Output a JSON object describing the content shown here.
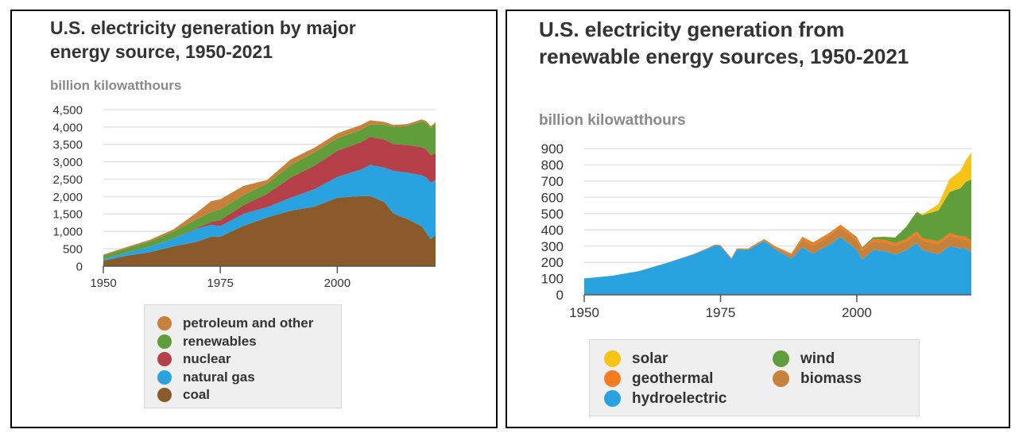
{
  "chart_data": [
    {
      "type": "area",
      "stacked": true,
      "title": "U.S. electricity generation by major energy source, 1950-2021",
      "ylabel": "billion kilowatthours",
      "ylim": [
        0,
        4500
      ],
      "xlim": [
        1950,
        2021
      ],
      "grid": true,
      "legend_position": "bottom",
      "x": [
        1950,
        1955,
        1960,
        1965,
        1970,
        1973,
        1975,
        1980,
        1985,
        1990,
        1995,
        2000,
        2005,
        2007,
        2010,
        2012,
        2015,
        2018,
        2019,
        2020,
        2021
      ],
      "series": [
        {
          "name": "coal",
          "color": "#8b5a2b",
          "values": [
            155,
            301,
            403,
            571,
            704,
            848,
            853,
            1162,
            1402,
            1594,
            1709,
            1966,
            2013,
            2016,
            1847,
            1514,
            1352,
            1146,
            965,
            774,
            898
          ]
        },
        {
          "name": "natural gas",
          "color": "#29a3e0",
          "values": [
            45,
            95,
            158,
            222,
            373,
            341,
            300,
            346,
            292,
            373,
            496,
            601,
            761,
            897,
            988,
            1226,
            1335,
            1469,
            1586,
            1624,
            1579
          ]
        },
        {
          "name": "nuclear",
          "color": "#b5404a",
          "values": [
            0,
            0,
            1,
            4,
            22,
            83,
            173,
            251,
            384,
            577,
            673,
            754,
            782,
            806,
            807,
            769,
            797,
            807,
            809,
            790,
            778
          ]
        },
        {
          "name": "renewables",
          "color": "#5f9e3a",
          "values": [
            101,
            117,
            150,
            196,
            253,
            275,
            304,
            285,
            291,
            357,
            385,
            356,
            358,
            353,
            427,
            494,
            545,
            742,
            762,
            791,
            826
          ]
        },
        {
          "name": "petroleum and other",
          "color": "#c8813a",
          "values": [
            33,
            38,
            48,
            67,
            192,
            320,
            295,
            266,
            109,
            166,
            135,
            140,
            141,
            122,
            79,
            55,
            57,
            55,
            53,
            48,
            60
          ]
        }
      ],
      "x_ticks": [
        "1950",
        "1975",
        "2000"
      ],
      "y_ticks": [
        "0",
        "500",
        "1,000",
        "1,500",
        "2,000",
        "2,500",
        "3,000",
        "3,500",
        "4,000",
        "4,500"
      ]
    },
    {
      "type": "area",
      "stacked": true,
      "title": "U.S. electricity generation from renewable energy sources, 1950-2021",
      "ylabel": "billion kilowatthours",
      "ylim": [
        0,
        900
      ],
      "xlim": [
        1950,
        2021
      ],
      "grid": true,
      "legend_position": "bottom",
      "x": [
        1950,
        1955,
        1960,
        1965,
        1970,
        1972,
        1974,
        1975,
        1977,
        1978,
        1980,
        1983,
        1985,
        1988,
        1990,
        1992,
        1995,
        1997,
        2000,
        2001,
        2003,
        2005,
        2007,
        2009,
        2011,
        2012,
        2015,
        2017,
        2018,
        2019,
        2020,
        2021
      ],
      "series": [
        {
          "name": "hydroelectric",
          "color": "#29a3e0",
          "values": [
            101,
            117,
            146,
            194,
            248,
            275,
            304,
            300,
            220,
            280,
            276,
            332,
            281,
            223,
            293,
            253,
            310,
            356,
            276,
            217,
            276,
            270,
            248,
            273,
            319,
            276,
            249,
            300,
            292,
            287,
            285,
            260
          ]
        },
        {
          "name": "biomass",
          "color": "#c8813a",
          "values": [
            0,
            0,
            0,
            1,
            2,
            2,
            2,
            3,
            3,
            3,
            3,
            5,
            9,
            19,
            45,
            50,
            56,
            58,
            60,
            54,
            53,
            54,
            55,
            54,
            56,
            57,
            64,
            63,
            63,
            58,
            55,
            55
          ]
        },
        {
          "name": "geothermal",
          "color": "#f47b20",
          "values": [
            0,
            0,
            0,
            0,
            1,
            2,
            3,
            3,
            4,
            3,
            5,
            7,
            9,
            11,
            16,
            17,
            14,
            15,
            14,
            14,
            14,
            15,
            15,
            15,
            16,
            16,
            16,
            16,
            16,
            16,
            17,
            16
          ]
        },
        {
          "name": "wind",
          "color": "#5f9e3a",
          "values": [
            0,
            0,
            0,
            0,
            0,
            0,
            0,
            0,
            0,
            0,
            0,
            0,
            0,
            1,
            3,
            3,
            3,
            3,
            6,
            7,
            11,
            18,
            34,
            74,
            120,
            141,
            191,
            254,
            273,
            295,
            338,
            380
          ]
        },
        {
          "name": "solar",
          "color": "#f6c417",
          "values": [
            0,
            0,
            0,
            0,
            0,
            0,
            0,
            0,
            0,
            0,
            0,
            0,
            0,
            0,
            0,
            0,
            0,
            0,
            0,
            0,
            0,
            1,
            1,
            1,
            2,
            4,
            39,
            77,
            93,
            107,
            132,
            165
          ]
        }
      ],
      "x_ticks": [
        "1950",
        "1975",
        "2000"
      ],
      "y_ticks": [
        "0",
        "100",
        "200",
        "300",
        "400",
        "500",
        "600",
        "700",
        "800",
        "900"
      ]
    }
  ],
  "legend_left": [
    {
      "label": "petroleum and other",
      "color": "#c8813a"
    },
    {
      "label": "renewables",
      "color": "#5f9e3a"
    },
    {
      "label": "nuclear",
      "color": "#b5404a"
    },
    {
      "label": "natural gas",
      "color": "#29a3e0"
    },
    {
      "label": "coal",
      "color": "#8b5a2b"
    }
  ],
  "legend_right": [
    {
      "label": "solar",
      "color": "#f6c417"
    },
    {
      "label": "wind",
      "color": "#5f9e3a"
    },
    {
      "label": "geothermal",
      "color": "#f47b20"
    },
    {
      "label": "biomass",
      "color": "#c8813a"
    },
    {
      "label": "hydroelectric",
      "color": "#29a3e0"
    }
  ]
}
